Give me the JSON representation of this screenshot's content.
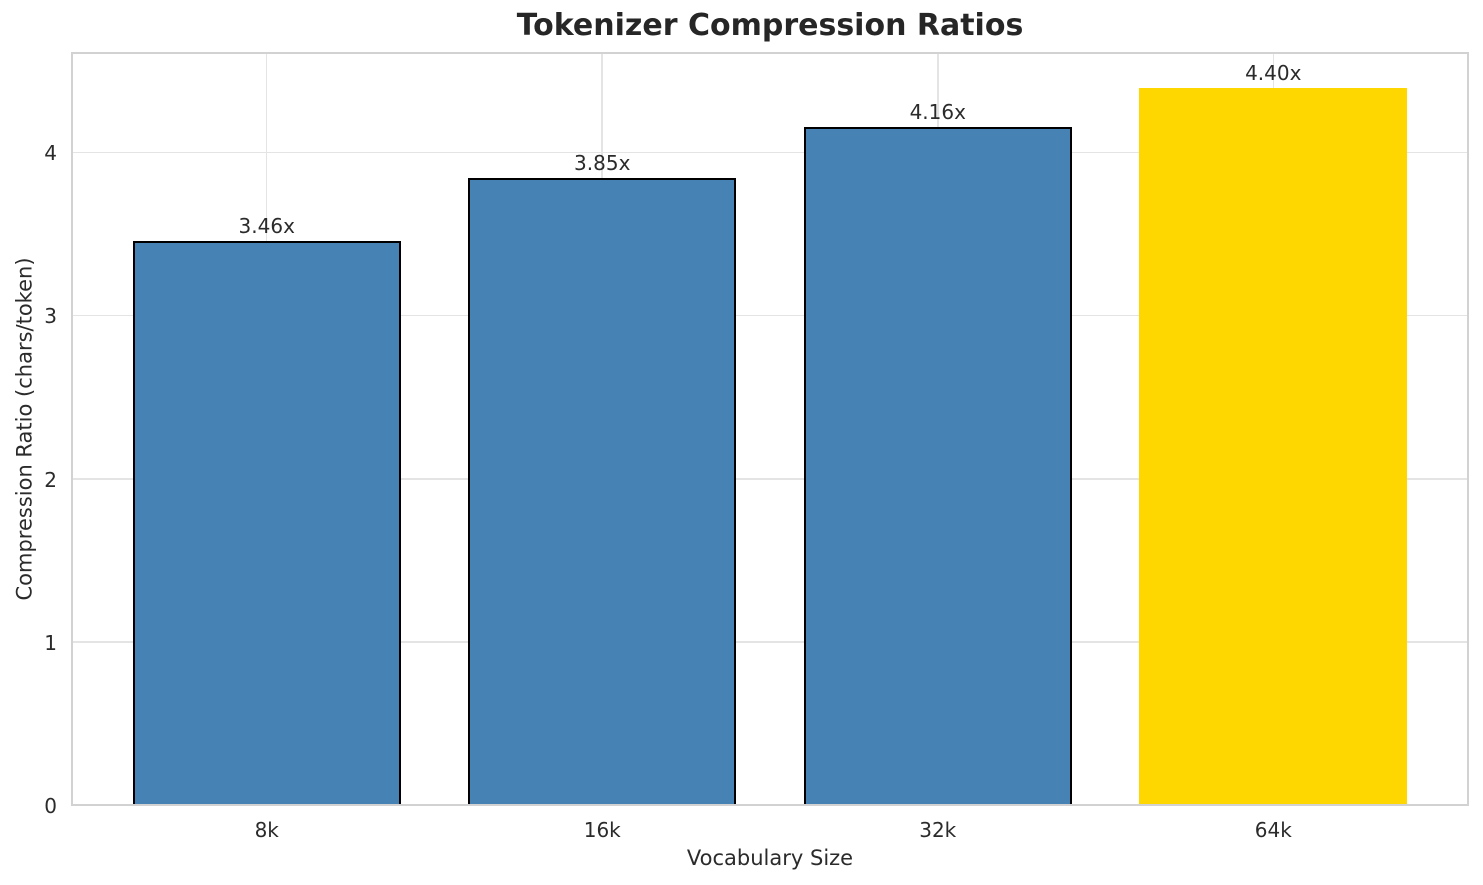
{
  "chart_data": {
    "type": "bar",
    "title": "Tokenizer Compression Ratios",
    "xlabel": "Vocabulary Size",
    "ylabel": "Compression Ratio (chars/token)",
    "categories": [
      "8k",
      "16k",
      "32k",
      "64k"
    ],
    "values": [
      3.46,
      3.85,
      4.16,
      4.4
    ],
    "bar_labels": [
      "3.46x",
      "3.85x",
      "4.16x",
      "4.40x"
    ],
    "bar_colors": [
      "#4682B4",
      "#4682B4",
      "#4682B4",
      "#FFD700"
    ],
    "bar_edge_colors": [
      "#000000",
      "#000000",
      "#000000",
      "none"
    ],
    "yticks": [
      0,
      1,
      2,
      3,
      4
    ],
    "ylim": [
      0,
      4.62
    ],
    "grid": true,
    "legend": "none",
    "colors": {
      "bar_default": "#4682B4",
      "bar_highlight": "#FFD700",
      "bar_edge": "#000000",
      "grid": "#e4e4e4",
      "spine": "#d2d2d2",
      "text": "#2b2b2b",
      "title_text": "#262626",
      "background": "#ffffff"
    }
  }
}
